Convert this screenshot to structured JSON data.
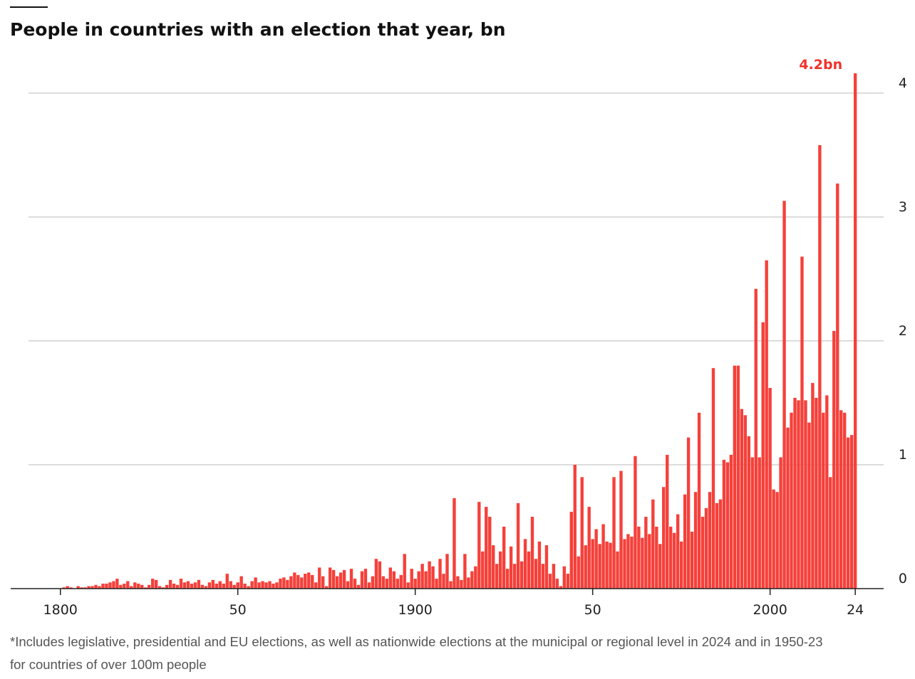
{
  "chart_data": {
    "type": "bar",
    "title": "People in countries with an election that year, bn",
    "footnote": [
      "*Includes legislative, presidential and EU elections, as well as nationwide elections at the municipal or regional level in 2024 and in 1950-23",
      "for countries of over 100m people"
    ],
    "color": "#f5403a",
    "label_color": "#f0322c",
    "grid": true,
    "xlim": [
      1786,
      2032
    ],
    "ylim": [
      0,
      4.2
    ],
    "xticks": [
      1800,
      {
        "value": 1850,
        "label": "50"
      },
      1900,
      {
        "value": 1950,
        "label": "50"
      },
      2000,
      {
        "value": 2024,
        "label": "24"
      }
    ],
    "yticks": [
      0,
      1,
      2,
      3,
      4
    ],
    "x": [
      1800,
      1801,
      1802,
      1803,
      1804,
      1805,
      1806,
      1807,
      1808,
      1809,
      1810,
      1811,
      1812,
      1813,
      1814,
      1815,
      1816,
      1817,
      1818,
      1819,
      1820,
      1821,
      1822,
      1823,
      1824,
      1825,
      1826,
      1827,
      1828,
      1829,
      1830,
      1831,
      1832,
      1833,
      1834,
      1835,
      1836,
      1837,
      1838,
      1839,
      1840,
      1841,
      1842,
      1843,
      1844,
      1845,
      1846,
      1847,
      1848,
      1849,
      1850,
      1851,
      1852,
      1853,
      1854,
      1855,
      1856,
      1857,
      1858,
      1859,
      1860,
      1861,
      1862,
      1863,
      1864,
      1865,
      1866,
      1867,
      1868,
      1869,
      1870,
      1871,
      1872,
      1873,
      1874,
      1875,
      1876,
      1877,
      1878,
      1879,
      1880,
      1881,
      1882,
      1883,
      1884,
      1885,
      1886,
      1887,
      1888,
      1889,
      1890,
      1891,
      1892,
      1893,
      1894,
      1895,
      1896,
      1897,
      1898,
      1899,
      1900,
      1901,
      1902,
      1903,
      1904,
      1905,
      1906,
      1907,
      1908,
      1909,
      1910,
      1911,
      1912,
      1913,
      1914,
      1915,
      1916,
      1917,
      1918,
      1919,
      1920,
      1921,
      1922,
      1923,
      1924,
      1925,
      1926,
      1927,
      1928,
      1929,
      1930,
      1931,
      1932,
      1933,
      1934,
      1935,
      1936,
      1937,
      1938,
      1939,
      1940,
      1941,
      1942,
      1943,
      1944,
      1945,
      1946,
      1947,
      1948,
      1949,
      1950,
      1951,
      1952,
      1953,
      1954,
      1955,
      1956,
      1957,
      1958,
      1959,
      1960,
      1961,
      1962,
      1963,
      1964,
      1965,
      1966,
      1967,
      1968,
      1969,
      1970,
      1971,
      1972,
      1973,
      1974,
      1975,
      1976,
      1977,
      1978,
      1979,
      1980,
      1981,
      1982,
      1983,
      1984,
      1985,
      1986,
      1987,
      1988,
      1989,
      1990,
      1991,
      1992,
      1993,
      1994,
      1995,
      1996,
      1997,
      1998,
      1999,
      2000,
      2001,
      2002,
      2003,
      2004,
      2005,
      2006,
      2007,
      2008,
      2009,
      2010,
      2011,
      2012,
      2013,
      2014,
      2015,
      2016,
      2017,
      2018,
      2019,
      2020,
      2021,
      2022,
      2023,
      2024
    ],
    "values": [
      0,
      0.01,
      0.02,
      0.01,
      0,
      0.02,
      0.01,
      0.01,
      0.02,
      0.02,
      0.03,
      0.02,
      0.04,
      0.04,
      0.05,
      0.06,
      0.08,
      0.03,
      0.04,
      0.06,
      0.02,
      0.05,
      0.04,
      0.03,
      0.01,
      0.03,
      0.08,
      0.07,
      0.02,
      0.01,
      0.03,
      0.07,
      0.04,
      0.03,
      0.08,
      0.05,
      0.06,
      0.04,
      0.05,
      0.07,
      0.03,
      0.02,
      0.05,
      0.07,
      0.04,
      0.06,
      0.04,
      0.12,
      0.06,
      0.03,
      0.05,
      0.1,
      0.04,
      0.02,
      0.06,
      0.09,
      0.05,
      0.06,
      0.05,
      0.06,
      0.04,
      0.05,
      0.08,
      0.09,
      0.07,
      0.1,
      0.13,
      0.11,
      0.09,
      0.12,
      0.13,
      0.11,
      0.05,
      0.17,
      0.1,
      0.02,
      0.17,
      0.15,
      0.1,
      0.13,
      0.15,
      0.06,
      0.16,
      0.08,
      0.03,
      0.14,
      0.16,
      0.05,
      0.1,
      0.24,
      0.22,
      0.1,
      0.08,
      0.17,
      0.14,
      0.08,
      0.11,
      0.28,
      0.05,
      0.16,
      0.08,
      0.14,
      0.2,
      0.14,
      0.22,
      0.18,
      0.08,
      0.24,
      0.12,
      0.28,
      0.06,
      0.73,
      0.1,
      0.07,
      0.28,
      0.09,
      0.14,
      0.18,
      0.7,
      0.3,
      0.66,
      0.58,
      0.35,
      0.2,
      0.3,
      0.5,
      0.16,
      0.34,
      0.2,
      0.69,
      0.22,
      0.4,
      0.3,
      0.58,
      0.24,
      0.38,
      0.2,
      0.35,
      0.12,
      0.2,
      0.08,
      0.02,
      0.18,
      0.12,
      0.62,
      1.0,
      0.26,
      0.9,
      0.35,
      0.66,
      0.4,
      0.48,
      0.36,
      0.52,
      0.38,
      0.37,
      0.9,
      0.3,
      0.95,
      0.4,
      0.44,
      0.42,
      1.07,
      0.5,
      0.41,
      0.58,
      0.44,
      0.72,
      0.5,
      0.36,
      0.82,
      1.08,
      0.5,
      0.45,
      0.6,
      0.38,
      0.76,
      1.22,
      0.46,
      0.78,
      1.42,
      0.58,
      0.65,
      0.78,
      1.78,
      0.69,
      0.72,
      1.04,
      1.02,
      1.08,
      1.8,
      1.8,
      1.45,
      1.4,
      1.23,
      1.06,
      2.42,
      1.06,
      2.15,
      2.65,
      1.62,
      0.8,
      0.78,
      1.06,
      3.13,
      1.3,
      1.42,
      1.54,
      1.52,
      2.68,
      1.52,
      1.34,
      1.66,
      1.54,
      3.58,
      1.42,
      1.56,
      0.9,
      2.08,
      3.27,
      1.44,
      1.42,
      1.22,
      1.24,
      4.16
    ],
    "value_labels": [
      null,
      null,
      null,
      null,
      null,
      null,
      null,
      null,
      null,
      null,
      null,
      null,
      null,
      null,
      null,
      null,
      null,
      null,
      null,
      null,
      null,
      null,
      null,
      null,
      null,
      null,
      null,
      null,
      null,
      null,
      null,
      null,
      null,
      null,
      null,
      null,
      null,
      null,
      null,
      null,
      null,
      null,
      null,
      null,
      null,
      null,
      null,
      null,
      null,
      null,
      null,
      null,
      null,
      null,
      null,
      null,
      null,
      null,
      null,
      null,
      null,
      null,
      null,
      null,
      null,
      null,
      null,
      null,
      null,
      null,
      null,
      null,
      null,
      null,
      null,
      null,
      null,
      null,
      null,
      null,
      null,
      null,
      null,
      null,
      null,
      null,
      null,
      null,
      null,
      null,
      null,
      null,
      null,
      null,
      null,
      null,
      null,
      null,
      null,
      null,
      null,
      null,
      null,
      null,
      null,
      null,
      null,
      null,
      null,
      null,
      null,
      null,
      null,
      null,
      null,
      null,
      null,
      null,
      null,
      null,
      null,
      null,
      null,
      null,
      null,
      null,
      null,
      null,
      null,
      null,
      null,
      null,
      null,
      null,
      null,
      null,
      null,
      null,
      null,
      null,
      null,
      null,
      null,
      null,
      null,
      null,
      null,
      null,
      null,
      null,
      null,
      null,
      null,
      null,
      null,
      null,
      null,
      null,
      null,
      null,
      null,
      null,
      null,
      null,
      null,
      null,
      null,
      null,
      null,
      null,
      null,
      null,
      null,
      null,
      null,
      null,
      null,
      null,
      null,
      null,
      null,
      null,
      null,
      null,
      null,
      null,
      null,
      null,
      null,
      null,
      null,
      null,
      null,
      null,
      null,
      null,
      null,
      null,
      null,
      null,
      null,
      null,
      null,
      null,
      null,
      null,
      null,
      null,
      null,
      null,
      null,
      null,
      null,
      null,
      null,
      null,
      null,
      null,
      null,
      null,
      null,
      null,
      null,
      null,
      "4.2bn"
    ]
  }
}
